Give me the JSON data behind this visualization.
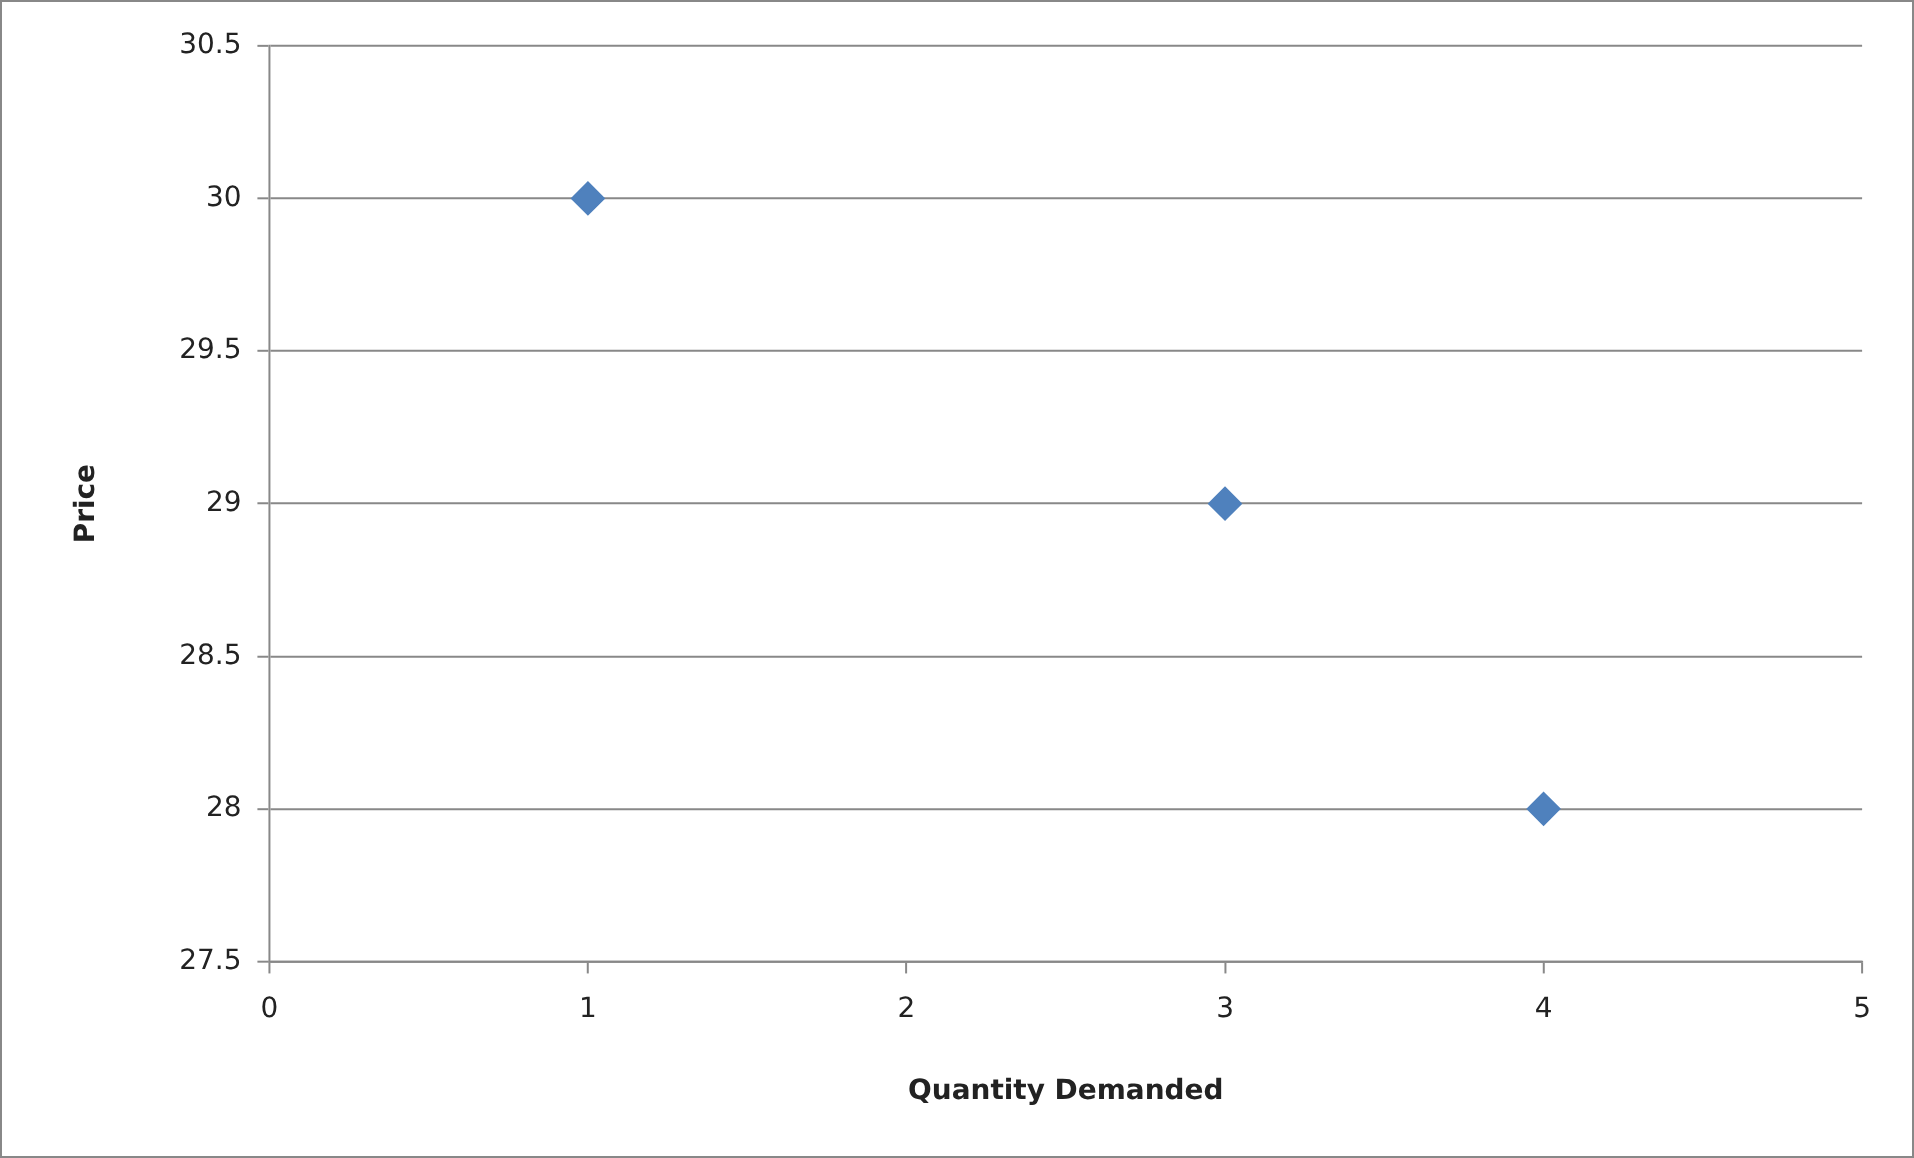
{
  "chart_data": {
    "type": "scatter",
    "xlabel": "Quantity Demanded",
    "ylabel": "Price",
    "x": [
      1,
      3,
      4
    ],
    "values": [
      30,
      29,
      28
    ],
    "color": "#4f81bd",
    "xlim": [
      0,
      5
    ],
    "xticks": [
      0,
      1,
      2,
      3,
      4,
      5
    ],
    "ylim": [
      27.5,
      30.5
    ],
    "yticks": [
      27.5,
      28,
      28.5,
      29,
      29.5,
      30,
      30.5
    ],
    "grid": "y",
    "marker": "diamond",
    "legend": false
  }
}
